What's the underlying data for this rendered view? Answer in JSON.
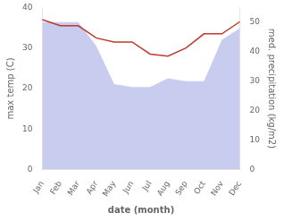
{
  "chart_data": {
    "type": "line",
    "categories": [
      "Jan",
      "Feb",
      "Mar",
      "Apr",
      "May",
      "Jun",
      "Jul",
      "Aug",
      "Sep",
      "Oct",
      "Nov",
      "Dec"
    ],
    "xlabel": "date (month)",
    "ylabel": "max temp (C)",
    "y2label": "med. precipitation (kg/m2)",
    "ylim": [
      0,
      40
    ],
    "yticks": [
      0,
      10,
      20,
      30,
      40
    ],
    "y2lim": [
      0,
      55
    ],
    "y2ticks": [
      0,
      10,
      20,
      30,
      40,
      50
    ],
    "grid": false,
    "series": [
      {
        "type": "area",
        "axis": "y2",
        "color": "#b0b8e8",
        "values": [
          50,
          50,
          50,
          42,
          29,
          28,
          28,
          31,
          30,
          30,
          44,
          48
        ]
      },
      {
        "type": "line",
        "color": "#c0392b",
        "values": [
          37.0,
          35.5,
          35.5,
          32.5,
          31.5,
          31.5,
          28.5,
          28.0,
          30.0,
          33.5,
          33.5,
          36.5
        ]
      }
    ]
  }
}
